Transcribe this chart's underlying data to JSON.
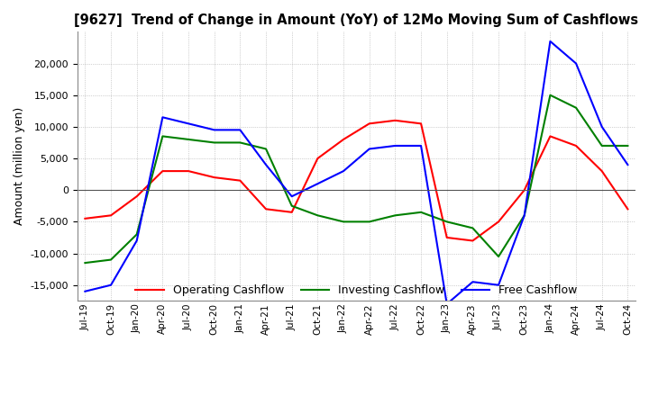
{
  "title": "[9627]  Trend of Change in Amount (YoY) of 12Mo Moving Sum of Cashflows",
  "ylabel": "Amount (million yen)",
  "ylim": [
    -17500,
    25000
  ],
  "yticks": [
    -15000,
    -10000,
    -5000,
    0,
    5000,
    10000,
    15000,
    20000
  ],
  "background_color": "#ffffff",
  "grid_color": "#aaaaaa",
  "dates": [
    "Jul-19",
    "Oct-19",
    "Jan-20",
    "Apr-20",
    "Jul-20",
    "Oct-20",
    "Jan-21",
    "Apr-21",
    "Jul-21",
    "Oct-21",
    "Jan-22",
    "Apr-22",
    "Jul-22",
    "Oct-22",
    "Jan-23",
    "Apr-23",
    "Jul-23",
    "Oct-23",
    "Jan-24",
    "Apr-24",
    "Jul-24",
    "Oct-24"
  ],
  "operating": [
    -4500,
    -4000,
    -1000,
    3000,
    3000,
    2000,
    1500,
    -3000,
    -3500,
    5000,
    8000,
    10500,
    11000,
    10500,
    -7500,
    -8000,
    -5000,
    0,
    8500,
    7000,
    3000,
    -3000
  ],
  "investing": [
    -11500,
    -11000,
    -7000,
    8500,
    8000,
    7500,
    7500,
    6500,
    -2500,
    -4000,
    -5000,
    -5000,
    -4000,
    -3500,
    -5000,
    -6000,
    -10500,
    -4000,
    15000,
    13000,
    7000,
    7000
  ],
  "free": [
    -16000,
    -15000,
    -8000,
    11500,
    10500,
    9500,
    9500,
    4000,
    -1000,
    1000,
    3000,
    6500,
    7000,
    7000,
    -18000,
    -14500,
    -15000,
    -4000,
    23500,
    20000,
    10000,
    4000
  ],
  "line_colors": {
    "operating": "#ff0000",
    "investing": "#008000",
    "free": "#0000ff"
  },
  "legend_labels": [
    "Operating Cashflow",
    "Investing Cashflow",
    "Free Cashflow"
  ]
}
